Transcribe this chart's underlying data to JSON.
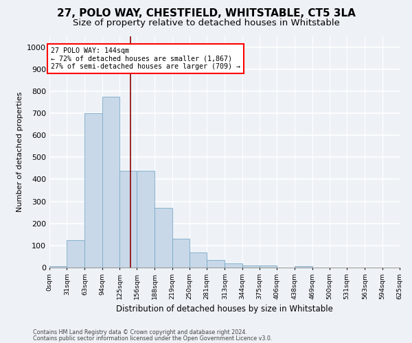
{
  "title": "27, POLO WAY, CHESTFIELD, WHITSTABLE, CT5 3LA",
  "subtitle": "Size of property relative to detached houses in Whitstable",
  "xlabel": "Distribution of detached houses by size in Whitstable",
  "ylabel": "Number of detached properties",
  "bar_color": "#c8d8e8",
  "bar_edge_color": "#7aaac8",
  "bin_edges": [
    0,
    31,
    63,
    94,
    125,
    156,
    188,
    219,
    250,
    281,
    313,
    344,
    375,
    406,
    438,
    469,
    500,
    531,
    563,
    594,
    625
  ],
  "bar_heights": [
    5,
    125,
    700,
    775,
    440,
    440,
    270,
    130,
    70,
    35,
    20,
    10,
    10,
    0,
    5,
    0,
    0,
    0,
    0,
    0
  ],
  "tick_labels": [
    "0sqm",
    "31sqm",
    "63sqm",
    "94sqm",
    "125sqm",
    "156sqm",
    "188sqm",
    "219sqm",
    "250sqm",
    "281sqm",
    "313sqm",
    "344sqm",
    "375sqm",
    "406sqm",
    "438sqm",
    "469sqm",
    "500sqm",
    "531sqm",
    "563sqm",
    "594sqm",
    "625sqm"
  ],
  "ylim": [
    0,
    1050
  ],
  "yticks": [
    0,
    100,
    200,
    300,
    400,
    500,
    600,
    700,
    800,
    900,
    1000
  ],
  "red_line_x": 144,
  "annotation_line1": "27 POLO WAY: 144sqm",
  "annotation_line2": "← 72% of detached houses are smaller (1,867)",
  "annotation_line3": "27% of semi-detached houses are larger (709) →",
  "annotation_box_color": "white",
  "annotation_box_edge": "red",
  "footer1": "Contains HM Land Registry data © Crown copyright and database right 2024.",
  "footer2": "Contains public sector information licensed under the Open Government Licence v3.0.",
  "background_color": "#eef2f7",
  "grid_color": "white",
  "title_fontsize": 11,
  "subtitle_fontsize": 9.5
}
